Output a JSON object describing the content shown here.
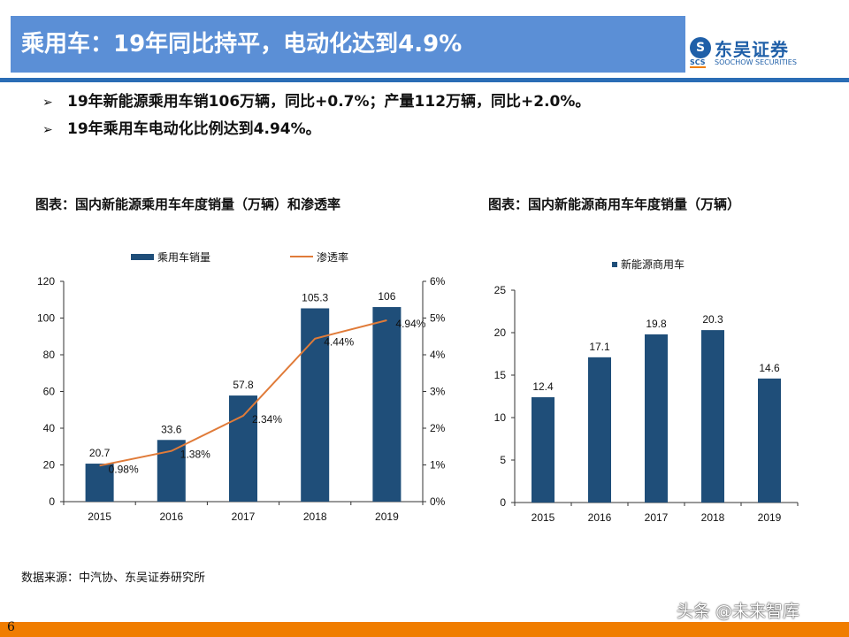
{
  "header": {
    "title": "乘用车：19年同比持平，电动化达到4.9%",
    "logo_cn": "东吴证券",
    "logo_en": "SOOCHOW SECURITIES",
    "logo_abbr": "SCS"
  },
  "bullets": [
    "19年新能源乘用车销106万辆，同比+0.7%；产量112万辆，同比+2.0%。",
    "19年乘用车电动化比例达到4.94%。"
  ],
  "source": "数据来源：中汽协、东吴证券研究所",
  "page_number": "6",
  "watermark": "头条 @未来智库",
  "colors": {
    "bar": "#1f4e79",
    "line": "#e07b39",
    "title_bg": "#5b8fd6",
    "footer": "#f07d00"
  },
  "chart_data": [
    {
      "type": "bar",
      "title": "图表：国内新能源乘用车年度销量（万辆）和渗透率",
      "categories": [
        "2015",
        "2016",
        "2017",
        "2018",
        "2019"
      ],
      "series": [
        {
          "name": "乘用车销量",
          "type": "bar",
          "axis": "left",
          "values": [
            20.7,
            33.6,
            57.8,
            105.3,
            106
          ],
          "labels": [
            "20.7",
            "33.6",
            "57.8",
            "105.3",
            "106"
          ]
        },
        {
          "name": "渗透率",
          "type": "line",
          "axis": "right",
          "values": [
            0.98,
            1.38,
            2.34,
            4.44,
            4.94
          ],
          "labels": [
            "0.98%",
            "1.38%",
            "2.34%",
            "4.44%",
            "4.94%"
          ]
        }
      ],
      "ylim": [
        0,
        120
      ],
      "yticks": [
        "0",
        "20",
        "40",
        "60",
        "80",
        "100",
        "120"
      ],
      "y2lim": [
        0,
        6
      ],
      "y2ticks": [
        "0%",
        "1%",
        "2%",
        "3%",
        "4%",
        "5%",
        "6%"
      ],
      "legend": "top",
      "grid": false
    },
    {
      "type": "bar",
      "title": "图表：国内新能源商用车年度销量（万辆）",
      "categories": [
        "2015",
        "2016",
        "2017",
        "2018",
        "2019"
      ],
      "series": [
        {
          "name": "新能源商用车",
          "values": [
            12.4,
            17.1,
            19.8,
            20.3,
            14.6
          ],
          "labels": [
            "12.4",
            "17.1",
            "19.8",
            "20.3",
            "14.6"
          ]
        }
      ],
      "ylim": [
        0,
        25
      ],
      "yticks": [
        "0",
        "5",
        "10",
        "15",
        "20",
        "25"
      ],
      "legend": "top-left",
      "grid": false
    }
  ]
}
